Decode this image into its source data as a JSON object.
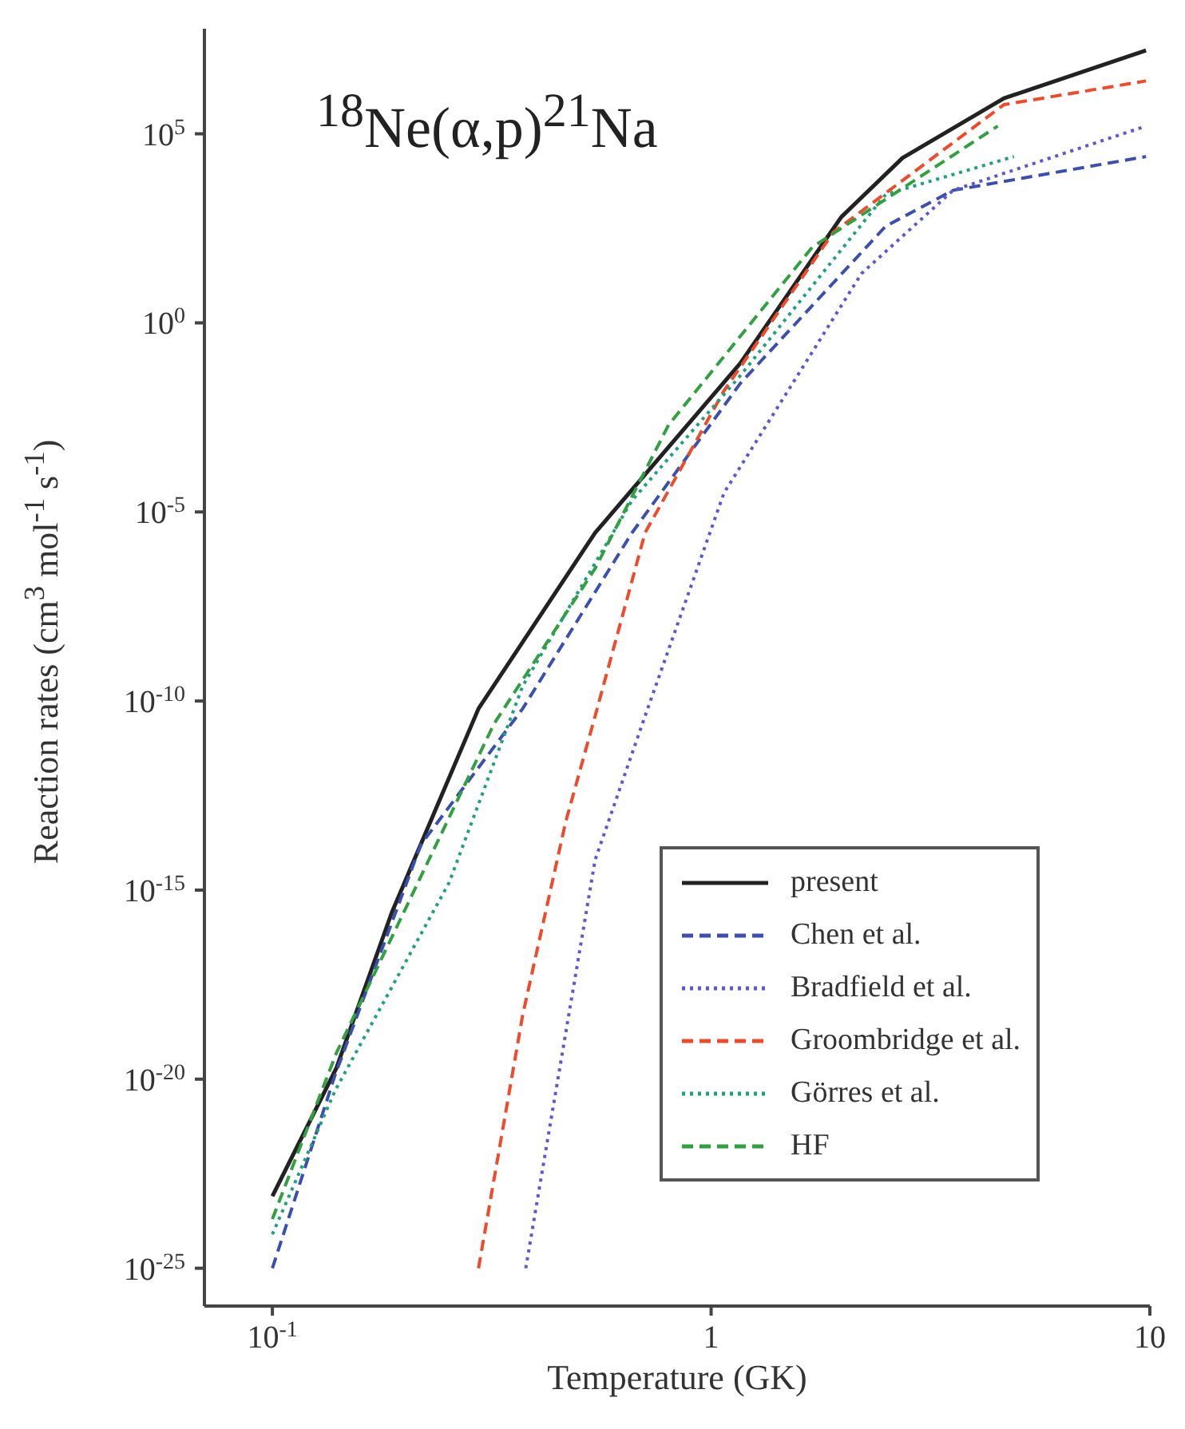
{
  "chart_data": {
    "type": "line",
    "title": "$^{18}$Ne(α,p)$^{21}$Na",
    "xlabel": "Temperature (GK)",
    "ylabel": "Reaction rates (cm$^{3}$ mol$^{-1}$ s$^{-1}$)",
    "log": "xy",
    "legend": "bottom right",
    "marker": "none",
    "xlim": [
      0.07,
      10
    ],
    "xticks": [
      {
        "value": 0.1,
        "label": "10$^{-1}$"
      },
      1,
      10
    ],
    "ylim": [
      1e-26,
      60000000.0
    ],
    "yticks": [
      {
        "value": 1e-25,
        "label": "10$^{-25}$"
      },
      {
        "value": 1e-20,
        "label": "10$^{-20}$"
      },
      {
        "value": 1e-15,
        "label": "10$^{-15}$"
      },
      {
        "value": 1e-10,
        "label": "10$^{-10}$"
      },
      {
        "value": 1e-05,
        "label": "10$^{-5}$"
      },
      {
        "value": 1,
        "label": "10$^{0}$"
      },
      {
        "value": 100000,
        "label": "10$^{5}$"
      }
    ],
    "series": [
      {
        "name": "present",
        "color": "#222222",
        "line_style": "solid",
        "x": [
          0.1,
          0.14,
          0.187,
          0.295,
          0.544,
          1.165,
          1.98,
          2.73,
          4.65,
          9.8
        ],
        "values": [
          8e-24,
          2e-20,
          2.5e-16,
          6.3e-11,
          2.8e-06,
          0.085,
          630,
          23000,
          870000,
          16000000
        ]
      },
      {
        "name": "Chen et al.",
        "color": "#3a4fb0",
        "line_style": "dashed",
        "x": [
          0.1,
          0.139,
          0.218,
          0.372,
          0.66,
          1.165,
          2.5,
          3.56,
          9.8
        ],
        "values": [
          1e-25,
          1.3e-20,
          1.6e-14,
          6.3e-11,
          2.8e-06,
          0.025,
          360,
          3200,
          25000
        ]
      },
      {
        "name": "Bradfield et al.",
        "color": "#5a5ad0",
        "line_style": "dotted",
        "x": [
          0.378,
          0.544,
          0.707,
          1.07,
          2.2,
          3.56,
          9.8
        ],
        "values": [
          1e-25,
          6.3e-15,
          4e-11,
          3.2e-05,
          20,
          3200,
          160000
        ]
      },
      {
        "name": "Groombridge et al.",
        "color": "#f04a2a",
        "line_style": "dashed",
        "x": [
          0.295,
          0.372,
          0.466,
          0.544,
          0.707,
          1.07,
          1.9,
          4.65,
          9.8
        ],
        "values": [
          1e-25,
          5e-19,
          6.3e-14,
          4e-11,
          2.8e-06,
          0.016,
          250,
          590000,
          2500000
        ]
      },
      {
        "name": "Görres et al.",
        "color": "#20a080",
        "line_style": "dotted",
        "x": [
          0.1,
          0.139,
          0.253,
          0.372,
          0.66,
          1.165,
          2.5,
          4.9
        ],
        "values": [
          7.9e-25,
          5e-21,
          1.6e-15,
          2.5e-10,
          2e-05,
          0.04,
          2500,
          25000
        ]
      },
      {
        "name": "HF",
        "color": "#30a040",
        "line_style": "dashed",
        "x": [
          0.1,
          0.14,
          0.32,
          0.544,
          0.8,
          1.7,
          4.5
        ],
        "values": [
          2e-24,
          5e-20,
          2.5e-11,
          3.2e-07,
          0.002,
          100,
          160000
        ]
      }
    ]
  }
}
